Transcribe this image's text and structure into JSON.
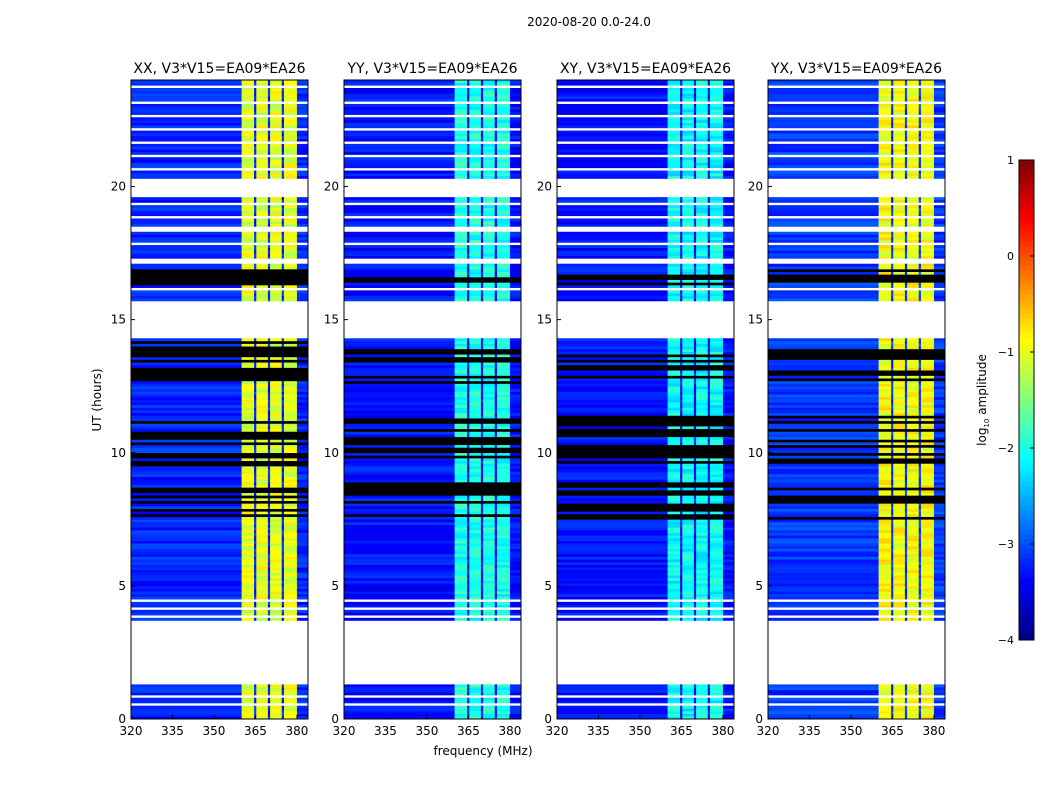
{
  "chart_data": {
    "type": "heatmap",
    "title": "2020-08-20 0.0-24.0",
    "xlabel": "frequency (MHz)",
    "ylabel": "UT (hours)",
    "xlim": [
      320,
      384
    ],
    "ylim": [
      0,
      24
    ],
    "xticks": [
      "320",
      "335",
      "350",
      "365",
      "380"
    ],
    "yticks": [
      "0",
      "5",
      "10",
      "15",
      "20"
    ],
    "colorbar": {
      "label_main": "log",
      "label_sub": "10",
      "label_end": " amplitude",
      "range": [
        -4,
        1
      ],
      "ticks": [
        "1",
        "0",
        "−1",
        "−2",
        "−3",
        "−4"
      ],
      "tick_values": [
        1,
        0,
        -1,
        -2,
        -3,
        -4
      ],
      "colormap": "jet"
    },
    "rfi_band_mhz": [
      360,
      380
    ],
    "rfi_subchannel_gaps_mhz": [
      364.5,
      369.5,
      374.5
    ],
    "flagged_hours": [
      [
        1.3,
        3.7
      ],
      [
        3.85,
        3.95
      ],
      [
        4.15,
        4.25
      ],
      [
        4.45,
        4.5
      ],
      [
        0.55,
        0.62
      ],
      [
        0.85,
        0.9
      ],
      [
        14.3,
        15.7
      ],
      [
        16.1,
        16.2
      ],
      [
        17.1,
        17.25
      ],
      [
        17.8,
        17.9
      ],
      [
        18.3,
        18.45
      ],
      [
        18.8,
        18.95
      ],
      [
        19.3,
        19.45
      ],
      [
        19.6,
        20.3
      ],
      [
        20.6,
        20.7
      ],
      [
        21.1,
        21.2
      ],
      [
        21.6,
        21.7
      ],
      [
        22.1,
        22.2
      ],
      [
        22.6,
        22.75
      ],
      [
        23.1,
        23.2
      ],
      [
        23.7,
        23.8
      ]
    ],
    "dark_line_hours": [
      [
        7.5,
        8.9
      ],
      [
        9.5,
        11.4
      ],
      [
        12.6,
        14.2
      ],
      [
        16.3,
        16.9
      ]
    ],
    "panels": [
      {
        "title": "XX, V3*V15=EA09*EA26",
        "background_log_amp": -3.2,
        "rfi_log_amp": -1.0
      },
      {
        "title": "YY, V3*V15=EA09*EA26",
        "background_log_amp": -3.3,
        "rfi_log_amp": -2.0
      },
      {
        "title": "XY, V3*V15=EA09*EA26",
        "background_log_amp": -3.3,
        "rfi_log_amp": -2.1
      },
      {
        "title": "YX, V3*V15=EA09*EA26",
        "background_log_amp": -3.1,
        "rfi_log_amp": -0.9
      }
    ]
  }
}
